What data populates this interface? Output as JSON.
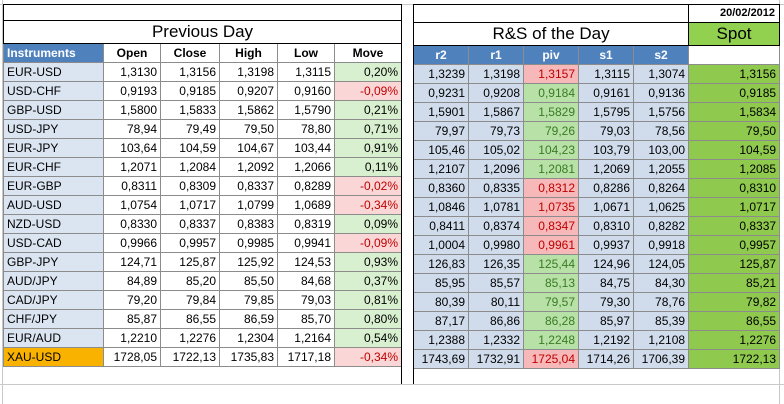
{
  "date": "20/02/2012",
  "left_title": "Previous Day",
  "right_title": "R&S of the Day",
  "spot_title": "Spot",
  "left_headers": [
    "Instruments",
    "Open",
    "Close",
    "High",
    "Low",
    "Move"
  ],
  "right_headers": [
    "r2",
    "r1",
    "piv",
    "s1",
    "s2"
  ],
  "rows": [
    {
      "inst": "EUR-USD",
      "open": "1,3130",
      "close": "1,3156",
      "high": "1,3198",
      "low": "1,3115",
      "move": "0,20%",
      "r2": "1,3239",
      "r1": "1,3198",
      "piv": "1,3157",
      "s1": "1,3115",
      "s2": "1,3074",
      "spot": "1,3156"
    },
    {
      "inst": "USD-CHF",
      "open": "0,9193",
      "close": "0,9185",
      "high": "0,9207",
      "low": "0,9160",
      "move": "-0,09%",
      "r2": "0,9231",
      "r1": "0,9208",
      "piv": "0,9184",
      "s1": "0,9161",
      "s2": "0,9136",
      "spot": "0,9185"
    },
    {
      "inst": "GBP-USD",
      "open": "1,5800",
      "close": "1,5833",
      "high": "1,5862",
      "low": "1,5790",
      "move": "0,21%",
      "r2": "1,5901",
      "r1": "1,5867",
      "piv": "1,5829",
      "s1": "1,5795",
      "s2": "1,5756",
      "spot": "1,5834"
    },
    {
      "inst": "USD-JPY",
      "open": "78,94",
      "close": "79,49",
      "high": "79,50",
      "low": "78,80",
      "move": "0,71%",
      "r2": "79,97",
      "r1": "79,73",
      "piv": "79,26",
      "s1": "79,03",
      "s2": "78,56",
      "spot": "79,50"
    },
    {
      "inst": "EUR-JPY",
      "open": "103,64",
      "close": "104,59",
      "high": "104,67",
      "low": "103,44",
      "move": "0,91%",
      "r2": "105,46",
      "r1": "105,02",
      "piv": "104,23",
      "s1": "103,79",
      "s2": "103,00",
      "spot": "104,59"
    },
    {
      "inst": "EUR-CHF",
      "open": "1,2071",
      "close": "1,2084",
      "high": "1,2092",
      "low": "1,2066",
      "move": "0,11%",
      "r2": "1,2107",
      "r1": "1,2096",
      "piv": "1,2081",
      "s1": "1,2069",
      "s2": "1,2055",
      "spot": "1,2085"
    },
    {
      "inst": "EUR-GBP",
      "open": "0,8311",
      "close": "0,8309",
      "high": "0,8337",
      "low": "0,8289",
      "move": "-0,02%",
      "r2": "0,8360",
      "r1": "0,8335",
      "piv": "0,8312",
      "s1": "0,8286",
      "s2": "0,8264",
      "spot": "0,8310"
    },
    {
      "inst": "AUD-USD",
      "open": "1,0754",
      "close": "1,0717",
      "high": "1,0799",
      "low": "1,0689",
      "move": "-0,34%",
      "r2": "1,0846",
      "r1": "1,0781",
      "piv": "1,0735",
      "s1": "1,0671",
      "s2": "1,0625",
      "spot": "1,0717"
    },
    {
      "inst": "NZD-USD",
      "open": "0,8330",
      "close": "0,8337",
      "high": "0,8383",
      "low": "0,8319",
      "move": "0,09%",
      "r2": "0,8411",
      "r1": "0,8374",
      "piv": "0,8347",
      "s1": "0,8310",
      "s2": "0,8282",
      "spot": "0,8337"
    },
    {
      "inst": "USD-CAD",
      "open": "0,9966",
      "close": "0,9957",
      "high": "0,9985",
      "low": "0,9941",
      "move": "-0,09%",
      "r2": "1,0004",
      "r1": "0,9980",
      "piv": "0,9961",
      "s1": "0,9937",
      "s2": "0,9918",
      "spot": "0,9957"
    },
    {
      "inst": "GBP-JPY",
      "open": "124,71",
      "close": "125,87",
      "high": "125,92",
      "low": "124,53",
      "move": "0,93%",
      "r2": "126,83",
      "r1": "126,35",
      "piv": "125,44",
      "s1": "124,96",
      "s2": "124,05",
      "spot": "125,87"
    },
    {
      "inst": "AUD/JPY",
      "open": "84,89",
      "close": "85,20",
      "high": "85,50",
      "low": "84,68",
      "move": "0,37%",
      "r2": "85,95",
      "r1": "85,57",
      "piv": "85,13",
      "s1": "84,75",
      "s2": "84,30",
      "spot": "85,21"
    },
    {
      "inst": "CAD/JPY",
      "open": "79,20",
      "close": "79,84",
      "high": "79,85",
      "low": "79,03",
      "move": "0,81%",
      "r2": "80,39",
      "r1": "80,11",
      "piv": "79,57",
      "s1": "79,30",
      "s2": "78,76",
      "spot": "79,82"
    },
    {
      "inst": "CHF/JPY",
      "open": "85,87",
      "close": "86,55",
      "high": "86,59",
      "low": "85,70",
      "move": "0,80%",
      "r2": "87,17",
      "r1": "86,86",
      "piv": "86,28",
      "s1": "85,97",
      "s2": "85,39",
      "spot": "86,55"
    },
    {
      "inst": "EUR/AUD",
      "open": "1,2210",
      "close": "1,2276",
      "high": "1,2304",
      "low": "1,2164",
      "move": "0,54%",
      "r2": "1,2388",
      "r1": "1,2332",
      "piv": "1,2248",
      "s1": "1,2192",
      "s2": "1,2108",
      "spot": "1,2276"
    },
    {
      "inst": "XAU-USD",
      "open": "1728,05",
      "close": "1722,13",
      "high": "1735,83",
      "low": "1717,18",
      "move": "-0,34%",
      "r2": "1743,69",
      "r1": "1732,91",
      "piv": "1725,04",
      "s1": "1714,26",
      "s2": "1706,39",
      "spot": "1722,13",
      "highlight": true
    }
  ]
}
